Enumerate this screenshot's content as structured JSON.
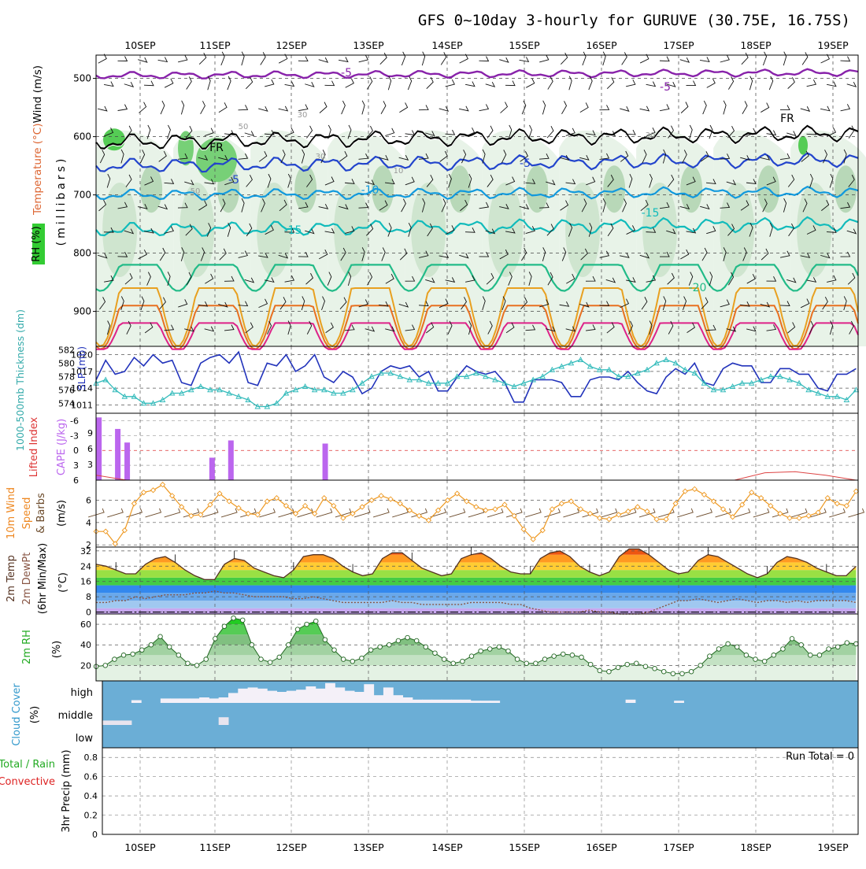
{
  "title": "GFS 0~10day 3-hourly for GURUVE (30.75E, 16.75S)",
  "dates": [
    "10SEP",
    "11SEP",
    "12SEP",
    "13SEP",
    "14SEP",
    "15SEP",
    "16SEP",
    "17SEP",
    "18SEP",
    "19SEP"
  ],
  "colors": {
    "wind": "#000000",
    "temp": "#dd3333",
    "rh_green": "#33cc33",
    "cyan": "#22aaaa",
    "blue": "#2233aa",
    "purple": "#bb66ee",
    "orange": "#ee8822",
    "dkgreen": "#229922",
    "cloud": "#6baed6",
    "precip_green": "#22aa22",
    "precip_red": "#dd2222"
  },
  "chart_data": [
    {
      "type": "contour",
      "panel": "upper-air",
      "ylabel_parts": [
        "Wind (m/s)",
        "Temperature (°C)",
        "RH (%)",
        "(millibars)"
      ],
      "y_ticks": [
        "500",
        "600",
        "700",
        "800",
        "900"
      ],
      "ylim": [
        960,
        460
      ],
      "temp_contour_labels": [
        "-5",
        "-5",
        "FR",
        "FR",
        "-5",
        "-5",
        "-10",
        "-15",
        "-15",
        "-20"
      ],
      "rh_labels": [
        "50",
        "50",
        "30",
        "10",
        "30",
        "30"
      ],
      "isotherms": [
        {
          "name": "-5",
          "color": "#8822aa",
          "level": "upper"
        },
        {
          "name": "FR",
          "color": "#000000",
          "level": "freezing"
        },
        {
          "name": "-5",
          "color": "#2244cc",
          "level": "mid"
        },
        {
          "name": "-10",
          "color": "#1199dd",
          "level": "mid"
        },
        {
          "name": "-15",
          "color": "#11bbbb",
          "level": "low"
        },
        {
          "name": "-20",
          "color": "#22bb88",
          "level": "low"
        }
      ]
    },
    {
      "type": "line",
      "panel": "thickness-slp",
      "ylabel_left": "1000-500mb Thickness (dm)",
      "ylabel_right": "SLP (mb)",
      "left_ticks": [
        "582",
        "580",
        "578",
        "576",
        "574"
      ],
      "right_ticks": [
        "1020",
        "1017",
        "1014",
        "1011"
      ],
      "series": [
        {
          "name": "SLP (mb)",
          "unit": "mb",
          "values": [
            1015.5,
            1019,
            1016.5,
            1017,
            1019.5,
            1018,
            1020,
            1018.5,
            1019,
            1015,
            1014.5,
            1018.5,
            1019.5,
            1020,
            1018.5,
            1020.5,
            1015,
            1014.5,
            1018.5,
            1018,
            1020,
            1017,
            1018,
            1020,
            1016,
            1015,
            1017,
            1016,
            1013,
            1014,
            1017,
            1018,
            1017.5,
            1018,
            1016,
            1017,
            1013.5,
            1013.5,
            1016,
            1018,
            1017,
            1016.5,
            1017,
            1015,
            1011.5,
            1011.5,
            1015.5,
            1015.5,
            1015.5,
            1015,
            1012.5,
            1012.5,
            1015.5,
            1016,
            1016,
            1015.5,
            1017,
            1015,
            1013.5,
            1013,
            1016,
            1017.5,
            1016.5,
            1018.5,
            1015,
            1014.5,
            1017.5,
            1018.5,
            1018,
            1018,
            1015,
            1015,
            1017.5,
            1017.5,
            1016.5,
            1016.5,
            1014,
            1013.5,
            1016.5,
            1016.5,
            1017.5
          ]
        },
        {
          "name": "1000-500mb Thickness (dm)",
          "unit": "dm",
          "values": [
            577,
            577.5,
            576,
            575,
            575,
            574,
            574,
            574.5,
            575.5,
            575.5,
            576,
            576.5,
            576,
            576,
            575.5,
            575,
            574.5,
            573.5,
            573.5,
            574,
            575.5,
            576,
            576.5,
            576,
            576,
            575.5,
            575.5,
            576,
            577,
            578,
            578.5,
            578.5,
            578,
            577.5,
            577.5,
            577,
            577,
            577,
            578,
            578,
            578.5,
            578,
            577.5,
            577,
            576.5,
            577,
            577.5,
            578,
            579,
            579.5,
            580,
            580.5,
            579.5,
            579,
            579,
            578,
            578,
            578.5,
            579,
            580,
            580.5,
            580,
            579,
            578.5,
            577,
            576,
            576,
            576.5,
            577,
            577,
            577.5,
            578,
            578,
            577.5,
            577,
            576,
            575.5,
            575,
            575,
            574.5,
            576
          ]
        }
      ]
    },
    {
      "type": "bar",
      "panel": "cape-li",
      "ylabel_left": "Lifted Index",
      "ylabel_right": "CAPE (J/kg)",
      "left_ticks": [
        "-6",
        "-3",
        "0",
        "3",
        "6"
      ],
      "right_ticks": [
        "9",
        "6",
        "3"
      ],
      "series": [
        {
          "name": "CAPE (J/kg)",
          "unit": "J/kg",
          "values": [
            12,
            0.0,
            9.8,
            7.2,
            0,
            0,
            0,
            0,
            0,
            0,
            0,
            0,
            4.3,
            0,
            7.6,
            0,
            0,
            0,
            0,
            0,
            0,
            0,
            0,
            0,
            7.0,
            0
          ]
        },
        {
          "name": "Lifted Index",
          "unit": "",
          "values": [
            5,
            6,
            6,
            6,
            6,
            6,
            6,
            6,
            6,
            6,
            6,
            6,
            6,
            6,
            6,
            6,
            6,
            6,
            6,
            6,
            6,
            6,
            4.5,
            4.3,
            5,
            6
          ]
        }
      ]
    },
    {
      "type": "line",
      "panel": "wind10m",
      "ylabel": "10m Wind Speed & Barbs (m/s)",
      "y_ticks": [
        "6",
        "4",
        "2"
      ],
      "ylim": [
        1.8,
        7.8
      ],
      "series": [
        {
          "name": "10m Wind Speed",
          "unit": "m/s",
          "values": [
            3.2,
            3.2,
            2.1,
            3.3,
            5.7,
            6.7,
            6.9,
            7.4,
            6.4,
            5.4,
            4.6,
            4.7,
            5.6,
            6.6,
            5.9,
            5.3,
            4.8,
            4.7,
            5.9,
            6.2,
            5.5,
            4.8,
            5.5,
            4.8,
            6.2,
            5.5,
            4.4,
            4.8,
            5.4,
            6.0,
            6.4,
            6.1,
            5.7,
            5.1,
            4.6,
            4.2,
            5.1,
            6.0,
            6.6,
            5.9,
            5.4,
            5.1,
            5.2,
            5.6,
            4.6,
            3.4,
            2.5,
            3.3,
            5.2,
            5.7,
            5.9,
            5.2,
            4.8,
            4.4,
            4.3,
            4.7,
            5.0,
            5.4,
            5.0,
            4.3,
            4.3,
            5.7,
            6.8,
            7.0,
            6.5,
            5.9,
            5.2,
            4.5,
            5.6,
            6.7,
            6.2,
            5.5,
            4.8,
            4.4,
            4.4,
            4.6,
            4.9,
            6.2,
            5.7,
            5.5,
            6.8
          ]
        }
      ]
    },
    {
      "type": "area",
      "panel": "temp2m",
      "ylabel": "2m Temp / 2m DewPt (6hr Min/Max) (°C)",
      "y_ticks": [
        "32",
        "24",
        "16",
        "8",
        "0"
      ],
      "ylim": [
        -1,
        34
      ],
      "series": [
        {
          "name": "2m Temp",
          "unit": "°C",
          "values": [
            25,
            24,
            22,
            20,
            20,
            25,
            28,
            29,
            26,
            22,
            19,
            17,
            17,
            25,
            28,
            27,
            23,
            21,
            19,
            18,
            22,
            29,
            30,
            30,
            28,
            24,
            21,
            19,
            20,
            28,
            31,
            31,
            27,
            23,
            21,
            19,
            20,
            28,
            30,
            31,
            28,
            24,
            21,
            20,
            20,
            28,
            31,
            32,
            29,
            24,
            21,
            19,
            21,
            29,
            33,
            33,
            30,
            26,
            22,
            20,
            21,
            27,
            30,
            29,
            26,
            23,
            20,
            18,
            20,
            26,
            29,
            28,
            26,
            23,
            21,
            19,
            19,
            24
          ]
        },
        {
          "name": "2m DewPt",
          "unit": "°C",
          "values": [
            5,
            5,
            6,
            6,
            8,
            7,
            8,
            9,
            9,
            9,
            10,
            10,
            11,
            10,
            10,
            9,
            8,
            8,
            8,
            8,
            7,
            7,
            8,
            7,
            6,
            5,
            5,
            5,
            5,
            5,
            6,
            5,
            5,
            4,
            4,
            4,
            4,
            4,
            5,
            5,
            5,
            5,
            4,
            4,
            2,
            1,
            0,
            0,
            0,
            0,
            1,
            0,
            0,
            -1,
            -1,
            -1,
            0,
            2,
            4,
            6,
            6,
            7,
            6,
            5,
            6,
            7,
            6,
            5,
            6,
            6,
            5,
            6,
            5,
            6,
            6,
            6,
            6,
            5
          ]
        }
      ]
    },
    {
      "type": "area",
      "panel": "rh2m",
      "ylabel": "2m RH (%)",
      "y_ticks": [
        "60",
        "40",
        "20"
      ],
      "ylim": [
        5,
        70
      ],
      "series": [
        {
          "name": "2m RH",
          "unit": "%",
          "values": [
            19,
            20,
            26,
            30,
            31,
            35,
            40,
            48,
            38,
            30,
            22,
            20,
            26,
            46,
            58,
            66,
            64,
            40,
            26,
            23,
            28,
            40,
            55,
            60,
            63,
            45,
            35,
            26,
            24,
            27,
            35,
            38,
            40,
            44,
            47,
            44,
            38,
            32,
            26,
            22,
            24,
            29,
            34,
            36,
            38,
            34,
            26,
            22,
            22,
            26,
            29,
            31,
            30,
            28,
            21,
            15,
            14,
            18,
            21,
            22,
            19,
            17,
            14,
            12,
            12,
            14,
            20,
            29,
            36,
            41,
            38,
            30,
            26,
            24,
            30,
            36,
            46,
            40,
            30,
            30,
            36,
            38,
            42,
            41
          ]
        }
      ]
    },
    {
      "type": "bar",
      "panel": "cloud",
      "ylabel": "Cloud Cover (%)",
      "y_ticks": [
        "high",
        "middle",
        "low"
      ],
      "series": [
        {
          "name": "high",
          "unit": "%",
          "values": [
            0,
            0,
            0,
            5,
            0,
            0,
            8,
            8,
            8,
            8,
            10,
            8,
            10,
            18,
            26,
            28,
            26,
            22,
            20,
            22,
            24,
            30,
            26,
            36,
            28,
            22,
            20,
            34,
            14,
            28,
            14,
            10,
            6,
            6,
            6,
            6,
            6,
            6,
            4,
            4,
            4,
            0,
            0,
            0,
            0,
            0,
            0,
            0,
            0,
            0,
            0,
            0,
            0,
            0,
            6,
            0,
            0,
            0,
            0,
            4,
            0,
            0,
            0,
            0,
            0,
            0,
            0,
            0,
            0,
            0,
            0,
            0,
            0,
            0,
            0,
            0,
            0,
            0
          ]
        },
        {
          "name": "middle",
          "unit": "%",
          "values": [
            8,
            8,
            8,
            0,
            0,
            0,
            0,
            0,
            0,
            0,
            0,
            0,
            14,
            0,
            0,
            0,
            0,
            0,
            0,
            0,
            0,
            0,
            0,
            0,
            0,
            0,
            0,
            0,
            0,
            0,
            0,
            0,
            0,
            0,
            0,
            0,
            0,
            0,
            0,
            0,
            0,
            0,
            0,
            0,
            0,
            0,
            0,
            0,
            0,
            0,
            0,
            0,
            0,
            0,
            0,
            0,
            0,
            0,
            0,
            0,
            0,
            0,
            0,
            0,
            0,
            0,
            0,
            0,
            0,
            0,
            0,
            0,
            0,
            0,
            0,
            0,
            0,
            0
          ]
        }
      ]
    },
    {
      "type": "bar",
      "panel": "precip",
      "ylabel": "3hr Precip (mm)",
      "ylabel_side_parts": [
        "Total / Rain",
        "Convective"
      ],
      "y_ticks": [
        "0.8",
        "0.6",
        "0.4",
        "0.2",
        "0"
      ],
      "ylim": [
        0,
        0.9
      ],
      "annotation": "Run Total = 0",
      "series": [
        {
          "name": "Total / Rain",
          "unit": "mm",
          "values": []
        },
        {
          "name": "Convective",
          "unit": "mm",
          "values": []
        }
      ]
    }
  ]
}
